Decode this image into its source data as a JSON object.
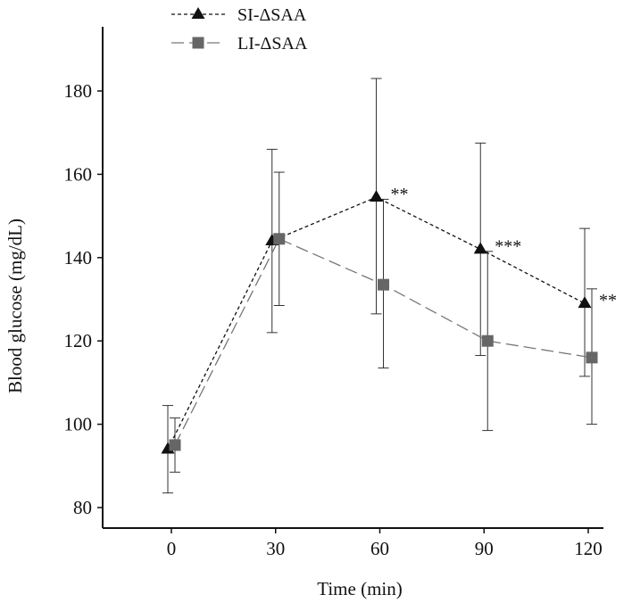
{
  "chart_data": {
    "type": "line",
    "xlabel": "Time (min)",
    "ylabel": "Blood glucose (mg/dL)",
    "xlim": [
      -25,
      130
    ],
    "ylim": [
      75,
      190
    ],
    "x_ticks": [
      "0",
      "30",
      "60",
      "90",
      "120"
    ],
    "y_ticks": [
      "80",
      "100",
      "120",
      "140",
      "160",
      "180"
    ],
    "grid": false,
    "legend_position": "top-left",
    "series": [
      {
        "name": "SI-ΔSAA",
        "marker": "triangle",
        "line": "short-dash",
        "color": "#111111",
        "x_offset": -1,
        "points": [
          {
            "x": 0,
            "y": 94,
            "err_low": 83.5,
            "err_high": 104.5
          },
          {
            "x": 30,
            "y": 144,
            "err_low": 122,
            "err_high": 166
          },
          {
            "x": 60,
            "y": 154.5,
            "err_low": 126.5,
            "err_high": 183
          },
          {
            "x": 90,
            "y": 142,
            "err_low": 116.5,
            "err_high": 167.5
          },
          {
            "x": 120,
            "y": 129,
            "err_low": 111.5,
            "err_high": 147
          }
        ],
        "annotations": [
          {
            "x": 60,
            "y": 154.5,
            "text": "**"
          },
          {
            "x": 90,
            "y": 142,
            "text": "***"
          },
          {
            "x": 120,
            "y": 129,
            "text": "**"
          }
        ]
      },
      {
        "name": "LI-ΔSAA",
        "marker": "square",
        "line": "long-dash",
        "color": "#666666",
        "x_offset": 1,
        "points": [
          {
            "x": 0,
            "y": 95,
            "err_low": 88.5,
            "err_high": 101.5
          },
          {
            "x": 30,
            "y": 144.5,
            "err_low": 128.5,
            "err_high": 160.5
          },
          {
            "x": 60,
            "y": 133.5,
            "err_low": 113.5,
            "err_high": 154
          },
          {
            "x": 90,
            "y": 120,
            "err_low": 98.5,
            "err_high": 141.5
          },
          {
            "x": 120,
            "y": 116,
            "err_low": 100,
            "err_high": 132.5
          }
        ]
      }
    ]
  }
}
